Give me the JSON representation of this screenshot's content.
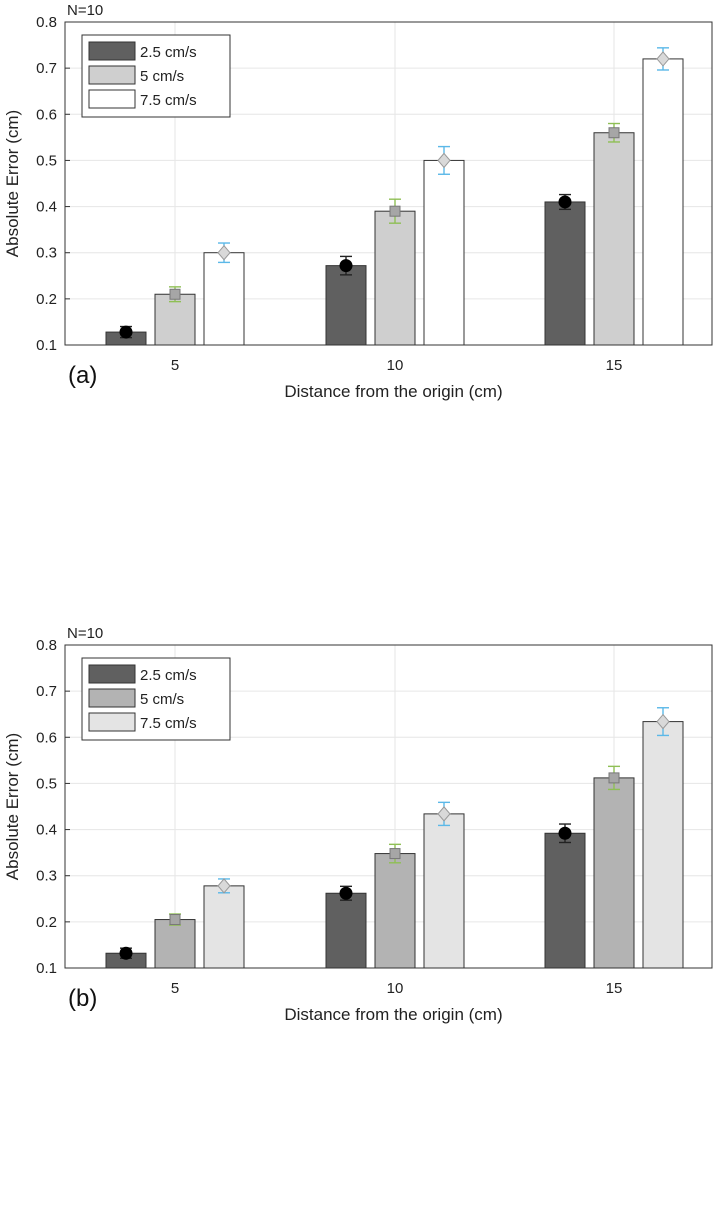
{
  "chart_data": [
    {
      "type": "bar",
      "panel_label": "(a)",
      "title": "N=10",
      "xlabel": "Distance from the origin (cm)",
      "ylabel": "Absolute Error (cm)",
      "categories": [
        "5",
        "10",
        "15"
      ],
      "ylim": [
        0.1,
        0.8
      ],
      "yticks": [
        "0.1",
        "0.2",
        "0.3",
        "0.4",
        "0.5",
        "0.6",
        "0.7",
        "0.8"
      ],
      "grid": true,
      "legend_position": "top-left",
      "series": [
        {
          "name": "2.5 cm/s",
          "values": [
            0.128,
            0.272,
            0.41
          ],
          "errors": [
            0.012,
            0.02,
            0.016
          ],
          "bar_color": "#606060",
          "marker": "circle",
          "marker_color": "#000000",
          "err_color": "#222222"
        },
        {
          "name": "5 cm/s",
          "values": [
            0.21,
            0.39,
            0.56
          ],
          "errors": [
            0.016,
            0.026,
            0.02
          ],
          "bar_color": "#cfcfcf",
          "marker": "square",
          "marker_color": "#a6a6a6",
          "err_color": "#8fbf55"
        },
        {
          "name": "7.5 cm/s",
          "values": [
            0.3,
            0.5,
            0.72
          ],
          "errors": [
            0.021,
            0.03,
            0.024
          ],
          "bar_color": "#ffffff",
          "marker": "diamond",
          "marker_color": "#d9d9d9",
          "err_color": "#5bb8e8"
        }
      ]
    },
    {
      "type": "bar",
      "panel_label": "(b)",
      "title": "N=10",
      "xlabel": "Distance from the origin (cm)",
      "ylabel": "Absolute Error (cm)",
      "categories": [
        "5",
        "10",
        "15"
      ],
      "ylim": [
        0.1,
        0.8
      ],
      "yticks": [
        "0.1",
        "0.2",
        "0.3",
        "0.4",
        "0.5",
        "0.6",
        "0.7",
        "0.8"
      ],
      "grid": true,
      "legend_position": "top-left",
      "series": [
        {
          "name": "2.5 cm/s",
          "values": [
            0.132,
            0.262,
            0.392
          ],
          "errors": [
            0.011,
            0.015,
            0.02
          ],
          "bar_color": "#606060",
          "marker": "circle",
          "marker_color": "#000000",
          "err_color": "#222222"
        },
        {
          "name": "5 cm/s",
          "values": [
            0.205,
            0.348,
            0.512
          ],
          "errors": [
            0.012,
            0.02,
            0.025
          ],
          "bar_color": "#b3b3b3",
          "marker": "square",
          "marker_color": "#a6a6a6",
          "err_color": "#8fbf55"
        },
        {
          "name": "7.5 cm/s",
          "values": [
            0.278,
            0.434,
            0.634
          ],
          "errors": [
            0.015,
            0.025,
            0.03
          ],
          "bar_color": "#e4e4e4",
          "marker": "diamond",
          "marker_color": "#d9d9d9",
          "err_color": "#5bb8e8"
        }
      ]
    }
  ]
}
